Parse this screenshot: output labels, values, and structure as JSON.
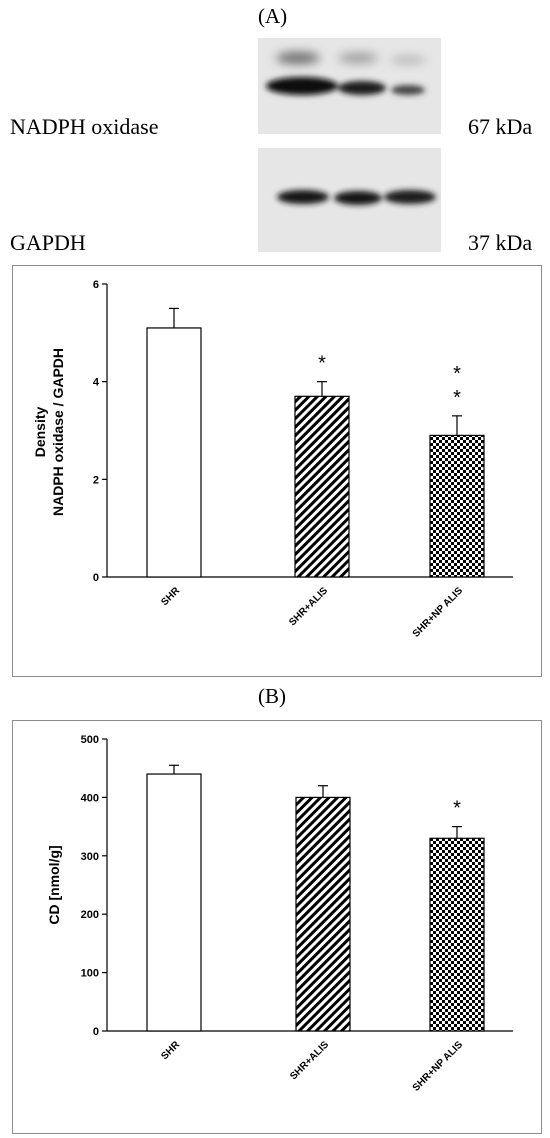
{
  "panel_labels": {
    "a": "(A)",
    "b": "(B)"
  },
  "blot": {
    "rows": [
      {
        "protein": "NADPH oxidase",
        "weight": "67 kDa"
      },
      {
        "protein": "GAPDH",
        "weight": "37 kDa"
      }
    ]
  },
  "chart_data": [
    {
      "type": "bar",
      "categories": [
        "SHR",
        "SHR+ALIS",
        "SHR+NP ALIS"
      ],
      "values": [
        5.1,
        3.7,
        2.9
      ],
      "errors": [
        0.4,
        0.3,
        0.4
      ],
      "significance": [
        "",
        "*",
        "**"
      ],
      "ylabel_line1": "Density",
      "ylabel_line2": "NADPH oxidase / GAPDH",
      "ylim": [
        0,
        6
      ],
      "yticks": [
        "0",
        "2",
        "4",
        "6"
      ],
      "grid": false,
      "bar_fills": [
        "white",
        "diagonal-stripes",
        "checkerboard"
      ]
    },
    {
      "type": "bar",
      "categories": [
        "SHR",
        "SHR+ALIS",
        "SHR+NP ALIS"
      ],
      "values": [
        440,
        400,
        330
      ],
      "errors": [
        15,
        20,
        20
      ],
      "significance": [
        "",
        "",
        "*"
      ],
      "ylabel": "CD [nmol/g]",
      "ylim": [
        0,
        500
      ],
      "yticks": [
        "0",
        "100",
        "200",
        "300",
        "400",
        "500"
      ],
      "grid": false,
      "bar_fills": [
        "white",
        "diagonal-stripes",
        "checkerboard"
      ]
    }
  ]
}
